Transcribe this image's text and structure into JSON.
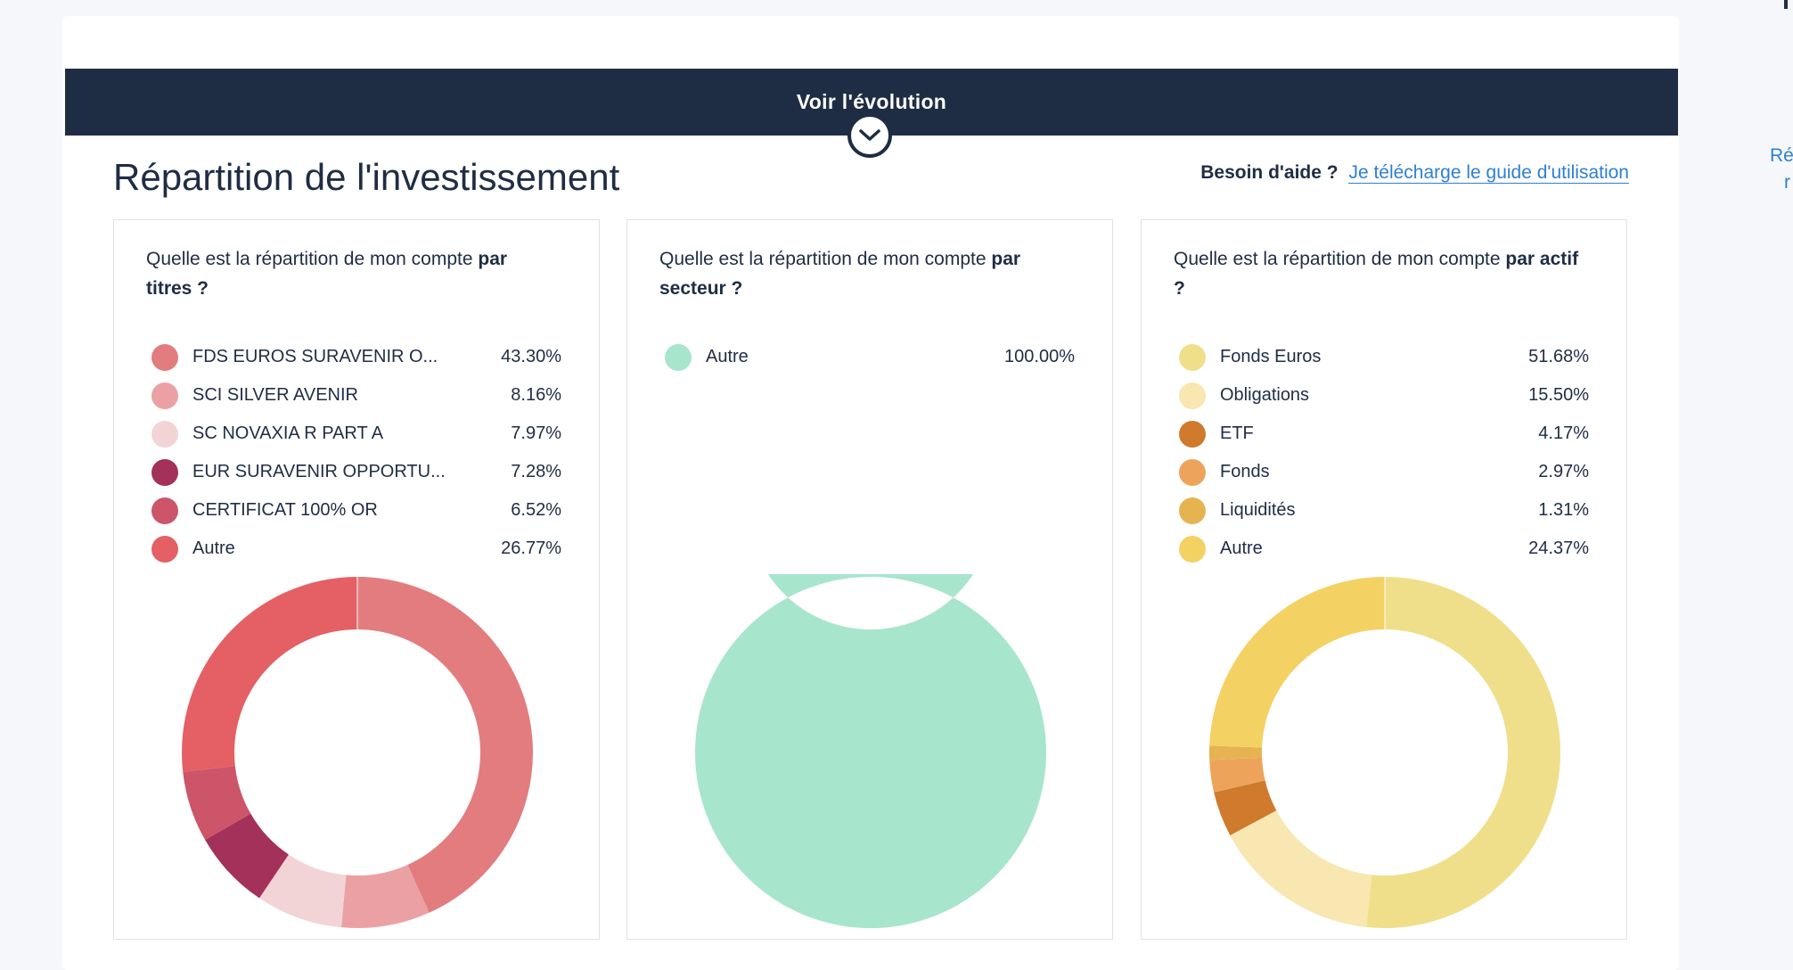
{
  "header": {
    "evolution_label": "Voir l'évolution"
  },
  "page": {
    "title": "Répartition de l'investissement",
    "help_question": "Besoin d'aide ?",
    "help_link": "Je télécharge le guide d'utilisation",
    "side_line1": "Ré",
    "side_line2": "r"
  },
  "icons": {
    "expand": "chevron-down-icon"
  },
  "chart_data": [
    {
      "type": "pie",
      "question_prefix": "Quelle est la répartition de mon compte",
      "question_bold": "par titres ?",
      "labels": [
        "FDS EUROS SURAVENIR O...",
        "SCI SILVER AVENIR",
        "SC NOVAXIA R PART A",
        "EUR SURAVENIR OPPORTU...",
        "CERTIFICAT 100% OR",
        "Autre"
      ],
      "values": [
        43.3,
        8.16,
        7.97,
        7.28,
        6.52,
        26.77
      ],
      "value_labels": [
        "43.30%",
        "8.16%",
        "7.97%",
        "7.28%",
        "6.52%",
        "26.77%"
      ],
      "colors": [
        "#e37c7f",
        "#eba1a3",
        "#f3d4d6",
        "#a3315a",
        "#cc5569",
        "#e46064"
      ],
      "donut": true
    },
    {
      "type": "pie",
      "question_prefix": "Quelle est la répartition de mon compte",
      "question_bold": "par secteur ?",
      "labels": [
        "Autre"
      ],
      "values": [
        100.0
      ],
      "value_labels": [
        "100.00%"
      ],
      "colors": [
        "#a8e5cd"
      ],
      "donut": true
    },
    {
      "type": "pie",
      "question_prefix": "Quelle est la répartition de mon compte",
      "question_bold": "par actif ?",
      "labels": [
        "Fonds Euros",
        "Obligations",
        "ETF",
        "Fonds",
        "Liquidités",
        "Autre"
      ],
      "values": [
        51.68,
        15.5,
        4.17,
        2.97,
        1.31,
        24.37
      ],
      "value_labels": [
        "51.68%",
        "15.50%",
        "4.17%",
        "2.97%",
        "1.31%",
        "24.37%"
      ],
      "colors": [
        "#f0df8a",
        "#f8e7b1",
        "#cf7a2d",
        "#eda45a",
        "#e5b451",
        "#f4d163"
      ],
      "donut": true
    }
  ]
}
